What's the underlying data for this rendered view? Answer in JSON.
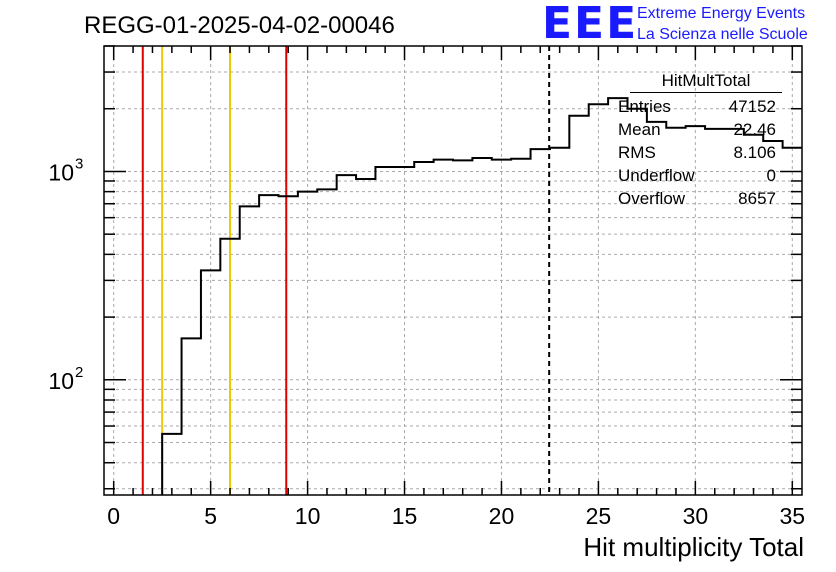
{
  "title": "REGG-01-2025-04-02-00046",
  "logo": {
    "mark": "EEE",
    "line1": "Extreme Energy Events",
    "line2": "La Scienza nelle Scuole"
  },
  "stats_box": {
    "name": "HitMultTotal",
    "rows": [
      {
        "label": "Entries",
        "value": "47152"
      },
      {
        "label": "Mean",
        "value": "22.46"
      },
      {
        "label": "RMS",
        "value": "8.106"
      },
      {
        "label": "Underflow",
        "value": "0"
      },
      {
        "label": "Overflow",
        "value": "8657"
      }
    ]
  },
  "chart_data": {
    "type": "histogram",
    "xlabel": "Hit multiplicity Total",
    "ylabel": "",
    "xlim": [
      -0.5,
      35.5
    ],
    "ylim": [
      28,
      4000
    ],
    "yscale": "log",
    "grid": true,
    "x_ticks": [
      0,
      5,
      10,
      15,
      20,
      25,
      30,
      35
    ],
    "y_tick_labels": [
      {
        "value": 100,
        "label": "10^2"
      },
      {
        "value": 1000,
        "label": "10^3"
      }
    ],
    "bin_edges": [
      -0.5,
      0.5,
      1.5,
      2.5,
      3.5,
      4.5,
      5.5,
      6.5,
      7.5,
      8.5,
      9.5,
      10.5,
      11.5,
      12.5,
      13.5,
      14.5,
      15.5,
      16.5,
      17.5,
      18.5,
      19.5,
      20.5,
      21.5,
      22.5,
      23.5,
      24.5,
      25.5,
      26.5,
      27.5,
      28.5,
      29.5,
      30.5,
      31.5,
      32.5,
      33.5,
      34.5,
      35.5
    ],
    "counts": [
      0,
      0,
      0,
      55,
      158,
      335,
      475,
      680,
      770,
      760,
      800,
      820,
      960,
      920,
      1050,
      1050,
      1110,
      1140,
      1130,
      1160,
      1140,
      1150,
      1280,
      1300,
      1850,
      2100,
      2250,
      2000,
      1730,
      1620,
      1650,
      1600,
      1600,
      1500,
      1400,
      1300
    ],
    "vlines": [
      {
        "x": 1.5,
        "color": "#e00000",
        "style": "solid"
      },
      {
        "x": 2.5,
        "color": "#f0c800",
        "style": "solid"
      },
      {
        "x": 6.0,
        "color": "#f0c800",
        "style": "solid"
      },
      {
        "x": 8.9,
        "color": "#e00000",
        "style": "solid"
      },
      {
        "x": 22.46,
        "color": "#000000",
        "style": "dashed"
      }
    ]
  }
}
